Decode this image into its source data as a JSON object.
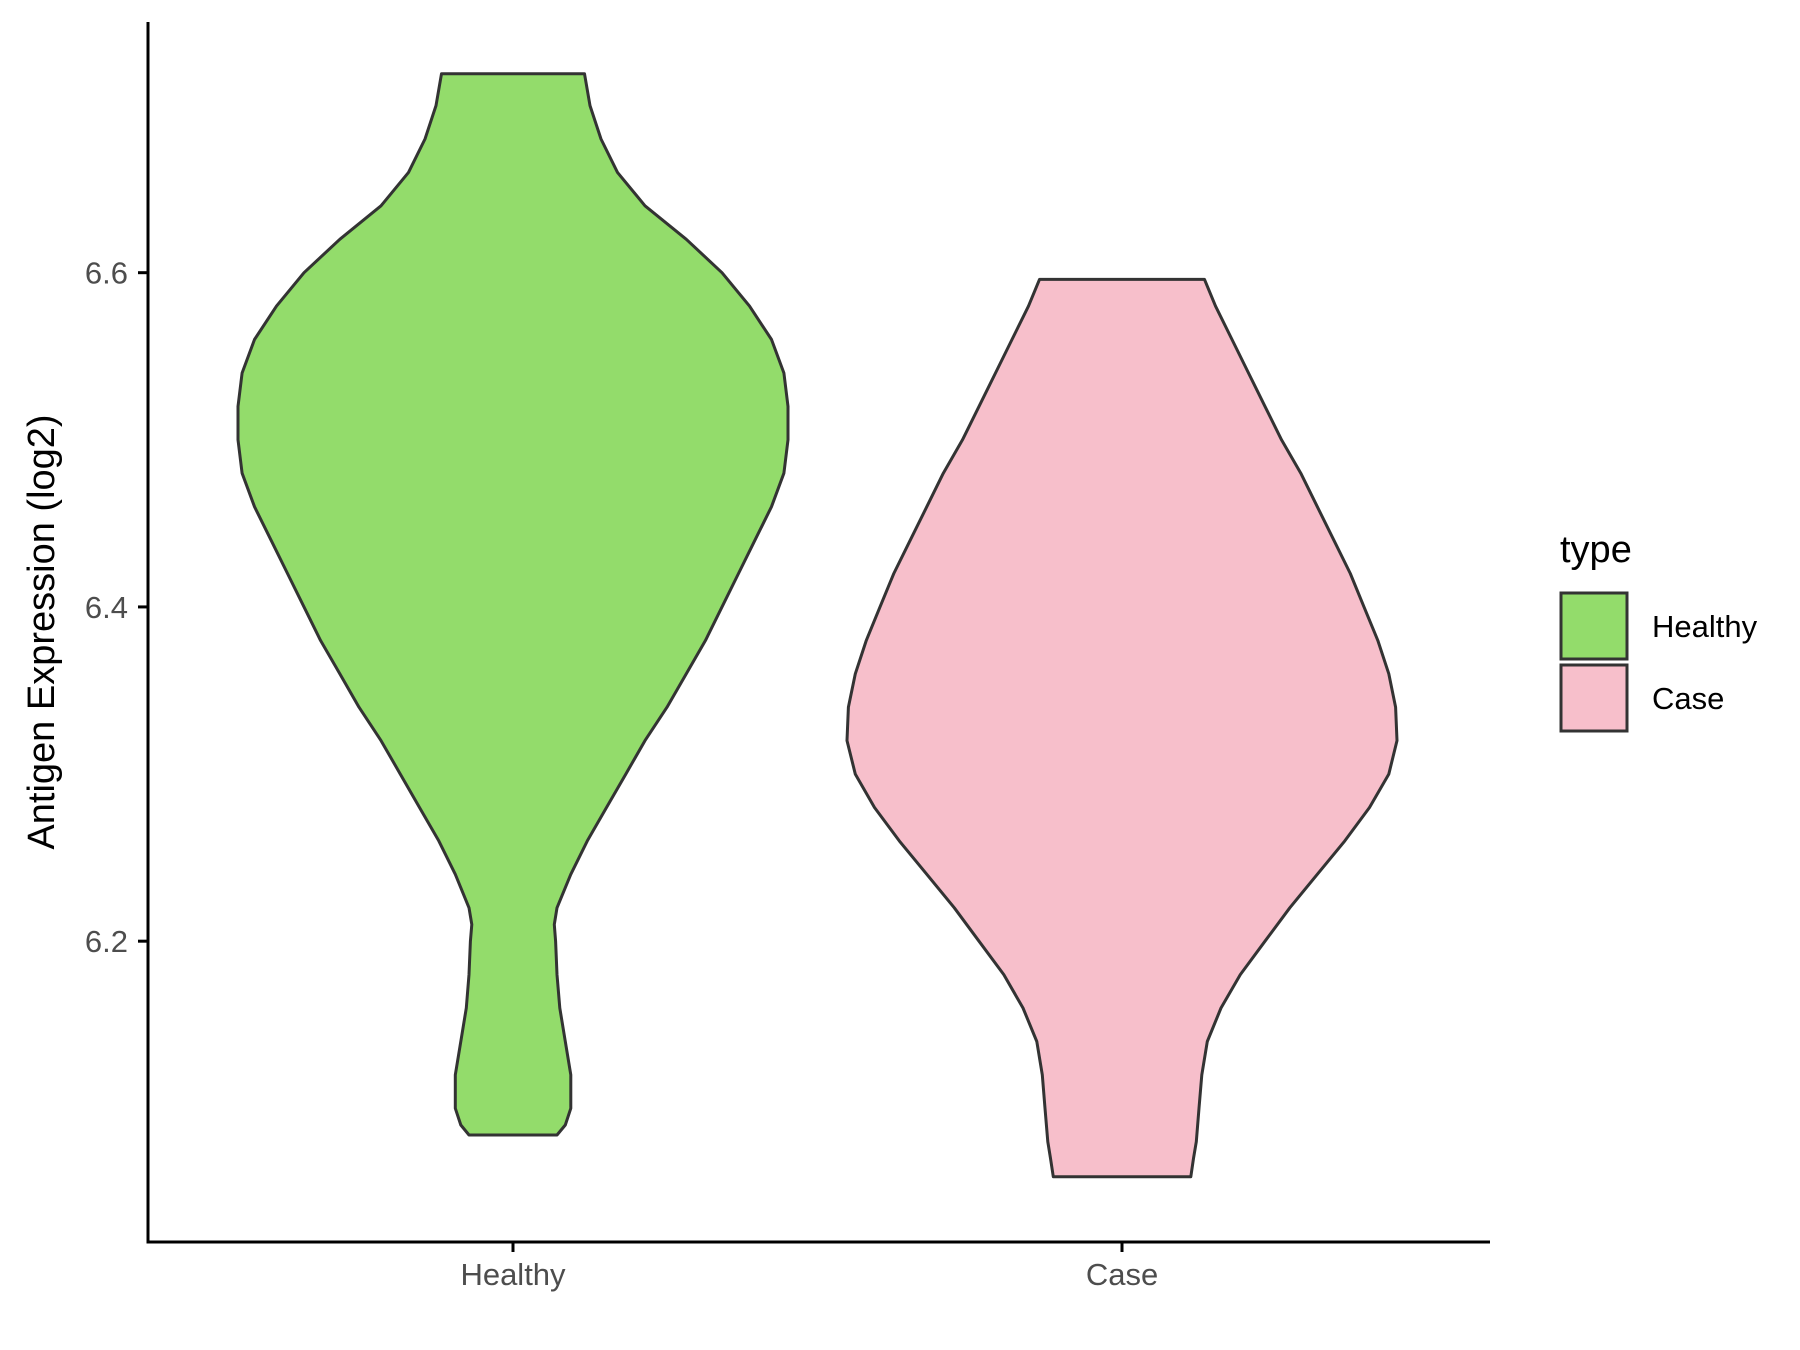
{
  "chart_data": {
    "type": "violin",
    "title": "",
    "xlabel": "",
    "ylabel": "Antigen Expression (log2)",
    "ylim": [
      6.02,
      6.75
    ],
    "yticks": [
      6.2,
      6.4,
      6.6
    ],
    "ytick_labels": [
      "6.2",
      "6.4",
      "6.6"
    ],
    "categories": [
      "Healthy",
      "Case"
    ],
    "grid": false,
    "legend": {
      "title": "type",
      "position": "right",
      "entries": [
        {
          "label": "Healthy",
          "color": "#93dc6b"
        },
        {
          "label": "Case",
          "color": "#f7bfcb"
        }
      ]
    },
    "series": [
      {
        "name": "Healthy",
        "color": "#93dc6b",
        "min": 6.084,
        "max": 6.719,
        "profile": [
          [
            6.719,
            0.26
          ],
          [
            6.7,
            0.28
          ],
          [
            6.68,
            0.32
          ],
          [
            6.66,
            0.38
          ],
          [
            6.64,
            0.48
          ],
          [
            6.62,
            0.63
          ],
          [
            6.6,
            0.76
          ],
          [
            6.58,
            0.86
          ],
          [
            6.56,
            0.94
          ],
          [
            6.54,
            0.985
          ],
          [
            6.52,
            1.0
          ],
          [
            6.5,
            1.0
          ],
          [
            6.48,
            0.985
          ],
          [
            6.46,
            0.94
          ],
          [
            6.44,
            0.88
          ],
          [
            6.42,
            0.82
          ],
          [
            6.4,
            0.76
          ],
          [
            6.38,
            0.7
          ],
          [
            6.36,
            0.63
          ],
          [
            6.34,
            0.56
          ],
          [
            6.32,
            0.48
          ],
          [
            6.3,
            0.41
          ],
          [
            6.28,
            0.34
          ],
          [
            6.26,
            0.27
          ],
          [
            6.24,
            0.21
          ],
          [
            6.22,
            0.16
          ],
          [
            6.21,
            0.15
          ],
          [
            6.2,
            0.155
          ],
          [
            6.18,
            0.16
          ],
          [
            6.16,
            0.17
          ],
          [
            6.14,
            0.19
          ],
          [
            6.12,
            0.21
          ],
          [
            6.1,
            0.21
          ],
          [
            6.09,
            0.19
          ],
          [
            6.084,
            0.16
          ]
        ]
      },
      {
        "name": "Case",
        "color": "#f7bfcb",
        "min": 6.059,
        "max": 6.596,
        "profile": [
          [
            6.596,
            0.3
          ],
          [
            6.58,
            0.34
          ],
          [
            6.56,
            0.4
          ],
          [
            6.54,
            0.46
          ],
          [
            6.52,
            0.52
          ],
          [
            6.5,
            0.58
          ],
          [
            6.48,
            0.65
          ],
          [
            6.46,
            0.71
          ],
          [
            6.44,
            0.77
          ],
          [
            6.42,
            0.83
          ],
          [
            6.4,
            0.88
          ],
          [
            6.38,
            0.93
          ],
          [
            6.36,
            0.97
          ],
          [
            6.34,
            0.995
          ],
          [
            6.32,
            1.0
          ],
          [
            6.3,
            0.97
          ],
          [
            6.28,
            0.9
          ],
          [
            6.26,
            0.81
          ],
          [
            6.24,
            0.71
          ],
          [
            6.22,
            0.61
          ],
          [
            6.2,
            0.52
          ],
          [
            6.18,
            0.43
          ],
          [
            6.16,
            0.36
          ],
          [
            6.14,
            0.31
          ],
          [
            6.12,
            0.29
          ],
          [
            6.1,
            0.28
          ],
          [
            6.08,
            0.27
          ],
          [
            6.07,
            0.26
          ],
          [
            6.059,
            0.25
          ]
        ]
      }
    ]
  }
}
